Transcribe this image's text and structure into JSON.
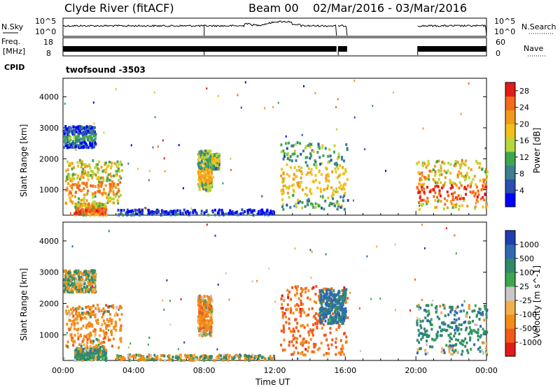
{
  "header": {
    "title": "Clyde River (fitACF)",
    "beam": "Beam 00",
    "date_range": "02/Mar/2016 - 03/Mar/2016"
  },
  "noise_panel": {
    "left_label": "N.Sky",
    "right_label": "N.Search",
    "left_ticks": [
      "10^5",
      "10^0"
    ],
    "right_ticks": [
      "10^5",
      "10^0"
    ]
  },
  "freq_panel": {
    "left_label_1": "Freq.",
    "left_label_2": "[MHz]",
    "right_label": "Nave",
    "left_ticks": [
      "18",
      "8"
    ],
    "right_ticks": [
      "60",
      "0"
    ]
  },
  "cpid": {
    "label": "CPID",
    "value": "twofsound -3503"
  },
  "colors": {
    "noise_trace": "#000000",
    "frame": "#000000"
  },
  "chart_data": [
    {
      "type": "heatmap",
      "name": "power",
      "ylabel": "Slant Range [km]",
      "xlabel": "",
      "yticks": [
        1000,
        2000,
        3000,
        4000
      ],
      "ylim": [
        180,
        4600
      ],
      "xlim": [
        0,
        24
      ],
      "xtick_labels": [
        "00:00",
        "04:00",
        "08:00",
        "12:00",
        "16:00",
        "20:00",
        "00:00"
      ],
      "colorbar": {
        "label": "Power [dB]",
        "ticks": [
          4,
          8,
          12,
          16,
          20,
          24,
          28
        ],
        "range": [
          0,
          30
        ],
        "colors": [
          "#0000ff",
          "#2b4fb0",
          "#3d7f8f",
          "#3ea64f",
          "#b8d63a",
          "#f2c01a",
          "#f29a1a",
          "#f26a1a",
          "#e31a1a"
        ]
      },
      "regions": [
        {
          "t": [
            0.1,
            3.3
          ],
          "r": [
            600,
            2000
          ],
          "core": [
            900,
            1300
          ],
          "level": 24
        },
        {
          "t": [
            0.0,
            1.8
          ],
          "r": [
            2400,
            3100
          ],
          "core": [
            2600,
            2800
          ],
          "level": 10
        },
        {
          "t": [
            0.6,
            2.4
          ],
          "r": [
            180,
            600
          ],
          "core": [
            250,
            450
          ],
          "level": 26
        },
        {
          "t": [
            7.6,
            8.4
          ],
          "r": [
            1000,
            2300
          ],
          "core": [
            1300,
            1700
          ],
          "level": 20
        },
        {
          "t": [
            8.4,
            8.8
          ],
          "r": [
            1700,
            2200
          ],
          "core": [
            1900,
            2100
          ],
          "level": 18
        },
        {
          "t": [
            12.3,
            16.1
          ],
          "r": [
            400,
            2600
          ],
          "core": [
            900,
            1800
          ],
          "level": 18
        },
        {
          "t": [
            20.0,
            24.0
          ],
          "r": [
            400,
            2000
          ],
          "core": [
            700,
            1200
          ],
          "level": 26
        },
        {
          "t": [
            3.0,
            12.0
          ],
          "r": [
            180,
            400
          ],
          "core": [
            180,
            260
          ],
          "level": 6
        }
      ]
    },
    {
      "type": "heatmap",
      "name": "velocity",
      "ylabel": "Slant Range [km]",
      "xlabel": "Time UT",
      "yticks": [
        1000,
        2000,
        3000,
        4000
      ],
      "ylim": [
        180,
        4600
      ],
      "xlim": [
        0,
        24
      ],
      "xtick_labels": [
        "00:00",
        "04:00",
        "08:00",
        "12:00",
        "16:00",
        "20:00",
        "00:00"
      ],
      "colorbar": {
        "label": "Velocity [m s^-1]",
        "ticks": [
          "-1000",
          "-500",
          "-100",
          "-25",
          "25",
          "100",
          "500",
          "1000"
        ],
        "colors": [
          "#e31a1a",
          "#f25a1a",
          "#f28c1a",
          "#f2b04a",
          "#c8c8c8",
          "#3ea64f",
          "#2f8a6a",
          "#2f6ab0",
          "#1f3fb0"
        ]
      },
      "regions": [
        {
          "t": [
            0.1,
            3.3
          ],
          "r": [
            600,
            2000
          ],
          "core": [
            1000,
            1600
          ],
          "level": -300
        },
        {
          "t": [
            0.0,
            1.8
          ],
          "r": [
            2400,
            3100
          ],
          "core": [
            2600,
            2800
          ],
          "level": 0
        },
        {
          "t": [
            0.6,
            2.4
          ],
          "r": [
            180,
            600
          ],
          "core": [
            250,
            450
          ],
          "level": 200
        },
        {
          "t": [
            7.6,
            8.4
          ],
          "r": [
            1000,
            2300
          ],
          "core": [
            1300,
            1700
          ],
          "level": -300
        },
        {
          "t": [
            12.3,
            16.1
          ],
          "r": [
            400,
            2600
          ],
          "core": [
            800,
            1600
          ],
          "level": -600
        },
        {
          "t": [
            14.5,
            16.0
          ],
          "r": [
            1400,
            2500
          ],
          "core": [
            1800,
            2300
          ],
          "level": 600
        },
        {
          "t": [
            20.0,
            24.0
          ],
          "r": [
            400,
            2000
          ],
          "core": [
            800,
            1300
          ],
          "level": 300
        },
        {
          "t": [
            3.0,
            12.0
          ],
          "r": [
            180,
            400
          ],
          "core": [
            180,
            260
          ],
          "level": -50
        }
      ]
    }
  ]
}
